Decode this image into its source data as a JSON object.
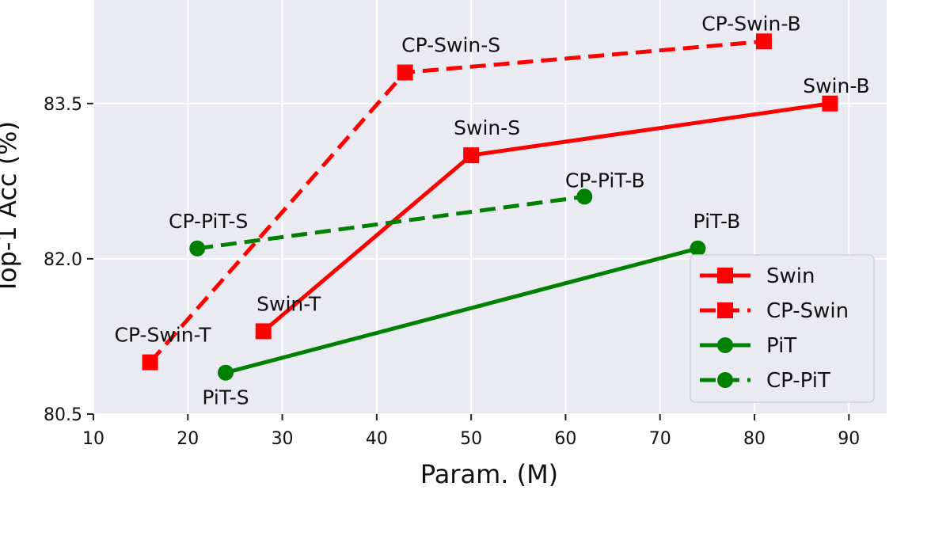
{
  "chart_data": {
    "type": "line",
    "xlabel": "Param. (M)",
    "ylabel": "Top-1 Acc (%)",
    "xlim": [
      10,
      94
    ],
    "ylim": [
      80.5,
      84.5
    ],
    "xticks": [
      "10",
      "20",
      "30",
      "40",
      "50",
      "60",
      "70",
      "80",
      "90"
    ],
    "yticks": [
      "80.5",
      "82.0",
      "83.5"
    ],
    "grid": true,
    "legend_position": "bottom-right",
    "series": [
      {
        "name": "Swin",
        "color": "#ff0000",
        "style": "solid",
        "marker": "square",
        "points": [
          {
            "label": "Swin-T",
            "x": 28,
            "y": 81.3
          },
          {
            "label": "Swin-S",
            "x": 50,
            "y": 83.0
          },
          {
            "label": "Swin-B",
            "x": 88,
            "y": 83.5
          }
        ]
      },
      {
        "name": "CP-Swin",
        "color": "#ff0000",
        "style": "dashed",
        "marker": "square",
        "points": [
          {
            "label": "CP-Swin-T",
            "x": 16,
            "y": 81.0
          },
          {
            "label": "CP-Swin-S",
            "x": 43,
            "y": 83.8
          },
          {
            "label": "CP-Swin-B",
            "x": 81,
            "y": 84.1
          }
        ]
      },
      {
        "name": "PiT",
        "color": "#008000",
        "style": "solid",
        "marker": "circle",
        "points": [
          {
            "label": "PiT-S",
            "x": 24,
            "y": 80.9
          },
          {
            "label": "PiT-B",
            "x": 74,
            "y": 82.1
          }
        ]
      },
      {
        "name": "CP-PiT",
        "color": "#008000",
        "style": "dashed",
        "marker": "circle",
        "points": [
          {
            "label": "CP-PiT-S",
            "x": 21,
            "y": 82.1
          },
          {
            "label": "CP-PiT-B",
            "x": 62,
            "y": 82.6
          }
        ]
      }
    ]
  }
}
